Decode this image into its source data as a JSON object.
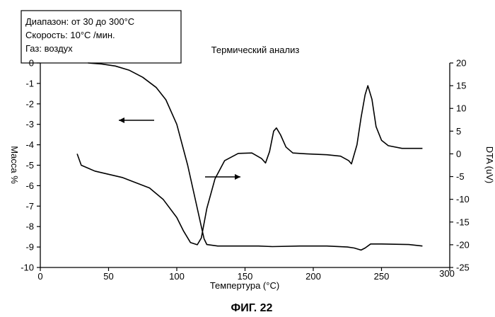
{
  "chart_data": {
    "type": "line",
    "title": "Термический анализ",
    "figure_label": "ФИГ. 22",
    "info_box": [
      "Диапазон: от 30 до 300°C",
      "Скорость: 10°C /мин.",
      "Газ: воздух"
    ],
    "xlabel": "Темпертура (°C)",
    "ylabel_left": "Масса %",
    "ylabel_right": "DTA (uV)",
    "xlim": [
      0,
      300
    ],
    "ylim_left": [
      -10,
      0
    ],
    "ylim_right": [
      -25,
      20
    ],
    "x_ticks": [
      "0",
      "50",
      "100",
      "150",
      "200",
      "250",
      "300"
    ],
    "y_left_ticks": [
      "0",
      "-1",
      "-2",
      "-3",
      "-4",
      "-5",
      "-6",
      "-7",
      "-8",
      "-9",
      "-10"
    ],
    "y_right_ticks": [
      "20",
      "15",
      "10",
      "5",
      "0",
      "-5",
      "-10",
      "-15",
      "-20",
      "-25"
    ],
    "grid": false,
    "legend": "none",
    "series": [
      {
        "axis": "left",
        "arrow": "left",
        "values": [
          [
            35,
            0.0
          ],
          [
            45,
            -0.05
          ],
          [
            55,
            -0.15
          ],
          [
            65,
            -0.35
          ],
          [
            75,
            -0.7
          ],
          [
            85,
            -1.2
          ],
          [
            92,
            -1.8
          ],
          [
            100,
            -3.0
          ],
          [
            108,
            -5.0
          ],
          [
            114,
            -6.8
          ],
          [
            118,
            -8.0
          ],
          [
            120,
            -8.6
          ],
          [
            122,
            -8.88
          ],
          [
            130,
            -8.95
          ],
          [
            150,
            -8.95
          ],
          [
            160,
            -8.95
          ],
          [
            170,
            -8.98
          ],
          [
            190,
            -8.95
          ],
          [
            210,
            -8.95
          ],
          [
            225,
            -9.0
          ],
          [
            230,
            -9.05
          ],
          [
            235,
            -9.15
          ],
          [
            238,
            -9.05
          ],
          [
            242,
            -8.85
          ],
          [
            250,
            -8.85
          ],
          [
            270,
            -8.88
          ],
          [
            280,
            -8.95
          ]
        ]
      },
      {
        "axis": "right",
        "arrow": "right",
        "values": [
          [
            27,
            0
          ],
          [
            30,
            -2.5
          ],
          [
            40,
            -3.8
          ],
          [
            60,
            -5.2
          ],
          [
            80,
            -7.5
          ],
          [
            90,
            -10.0
          ],
          [
            100,
            -14.0
          ],
          [
            105,
            -17.0
          ],
          [
            110,
            -19.5
          ],
          [
            115,
            -20.0
          ],
          [
            118,
            -18.5
          ],
          [
            122,
            -12.0
          ],
          [
            128,
            -5.5
          ],
          [
            135,
            -1.5
          ],
          [
            145,
            0.1
          ],
          [
            155,
            0.2
          ],
          [
            162,
            -1.0
          ],
          [
            165,
            -2.0
          ],
          [
            168,
            0.5
          ],
          [
            171,
            5.0
          ],
          [
            173,
            5.7
          ],
          [
            176,
            4.2
          ],
          [
            180,
            1.5
          ],
          [
            185,
            0.2
          ],
          [
            195,
            0.0
          ],
          [
            210,
            -0.2
          ],
          [
            220,
            -0.5
          ],
          [
            226,
            -1.5
          ],
          [
            228,
            -2.2
          ],
          [
            232,
            2.0
          ],
          [
            235,
            8.0
          ],
          [
            238,
            13.0
          ],
          [
            240,
            15.0
          ],
          [
            243,
            12.0
          ],
          [
            246,
            6.0
          ],
          [
            250,
            3.0
          ],
          [
            255,
            1.8
          ],
          [
            265,
            1.2
          ],
          [
            280,
            1.2
          ]
        ]
      }
    ]
  }
}
